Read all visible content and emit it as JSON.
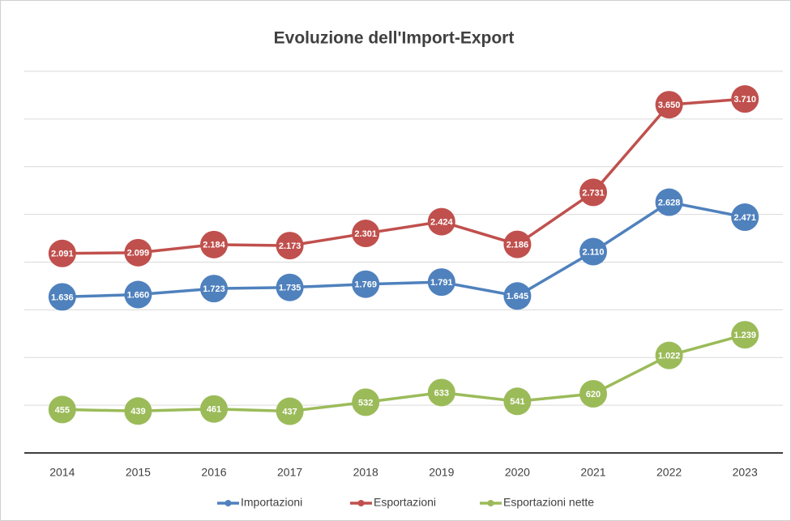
{
  "chart_data": {
    "type": "line",
    "title": "Evoluzione dell'Import-Export",
    "categories": [
      "2014",
      "2015",
      "2016",
      "2017",
      "2018",
      "2019",
      "2020",
      "2021",
      "2022",
      "2023"
    ],
    "series": [
      {
        "name": "Importazioni",
        "color": "#4f81bd",
        "values": [
          1636,
          1660,
          1723,
          1735,
          1769,
          1791,
          1645,
          2110,
          2628,
          2471
        ],
        "value_labels": [
          "1.636",
          "1.660",
          "1.723",
          "1.735",
          "1.769",
          "1.791",
          "1.645",
          "2.110",
          "2.628",
          "2.471"
        ]
      },
      {
        "name": "Esportazioni",
        "color": "#c0504d",
        "values": [
          2091,
          2099,
          2184,
          2173,
          2301,
          2424,
          2186,
          2731,
          3650,
          3710
        ],
        "value_labels": [
          "2.091",
          "2.099",
          "2.184",
          "2.173",
          "2.301",
          "2.424",
          "2.186",
          "2.731",
          "3.650",
          "3.710"
        ]
      },
      {
        "name": "Esportazioni nette",
        "color": "#9bbb59",
        "values": [
          455,
          439,
          461,
          437,
          532,
          633,
          541,
          620,
          1022,
          1239
        ],
        "value_labels": [
          "455",
          "439",
          "461",
          "437",
          "532",
          "633",
          "541",
          "620",
          "1.022",
          "1.239"
        ]
      }
    ],
    "ylim": [
      0,
      4000
    ],
    "yticks": [
      0,
      500,
      1000,
      1500,
      2000,
      2500,
      3000,
      3500,
      4000
    ],
    "grid": true,
    "legend": "bottom"
  }
}
